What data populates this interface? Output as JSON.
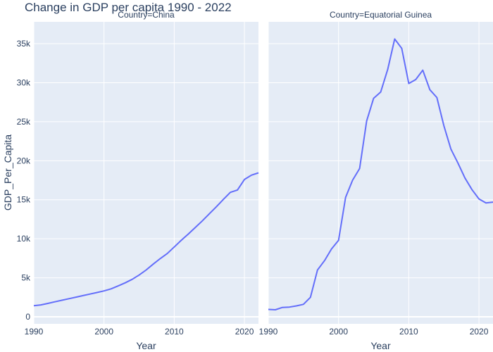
{
  "chart_data": {
    "type": "line",
    "title": "Change in GDP per capita 1990 - 2022",
    "ylabel": "GDP_Per_Capita",
    "xlabel": "Year",
    "ylim": [
      -900,
      37800
    ],
    "yticks": [
      0,
      5000,
      10000,
      15000,
      20000,
      25000,
      30000,
      35000
    ],
    "ytick_labels": [
      "0",
      "5k",
      "10k",
      "15k",
      "20k",
      "25k",
      "30k",
      "35k"
    ],
    "xticks": [
      1990,
      2000,
      2010,
      2020
    ],
    "xtick_labels": [
      "1990",
      "2000",
      "2010",
      "2020"
    ],
    "grid": true,
    "line_color": "#636efa",
    "panel_bg": "#e5ecf6",
    "panels": [
      {
        "facet_label": "Country=China",
        "xlim": [
          1990,
          2022
        ],
        "x": [
          1990,
          1991,
          1992,
          1993,
          1994,
          1995,
          1996,
          1997,
          1998,
          1999,
          2000,
          2001,
          2002,
          2003,
          2004,
          2005,
          2006,
          2007,
          2008,
          2009,
          2010,
          2011,
          2012,
          2013,
          2014,
          2015,
          2016,
          2017,
          2018,
          2019,
          2020,
          2021,
          2022
        ],
        "values": [
          1420,
          1530,
          1720,
          1920,
          2120,
          2320,
          2520,
          2720,
          2920,
          3110,
          3320,
          3580,
          3950,
          4350,
          4800,
          5350,
          6000,
          6750,
          7450,
          8100,
          8950,
          9800,
          10600,
          11450,
          12300,
          13200,
          14100,
          15050,
          15950,
          16250,
          17600,
          18150,
          18450
        ]
      },
      {
        "facet_label": "Country=Equatorial Guinea",
        "xlim": [
          1990,
          2022
        ],
        "x": [
          1990,
          1991,
          1992,
          1993,
          1994,
          1995,
          1996,
          1997,
          1998,
          1999,
          2000,
          2001,
          2002,
          2003,
          2004,
          2005,
          2006,
          2007,
          2008,
          2009,
          2010,
          2011,
          2012,
          2013,
          2014,
          2015,
          2016,
          2017,
          2018,
          2019,
          2020,
          2021,
          2022
        ],
        "values": [
          950,
          900,
          1200,
          1250,
          1400,
          1600,
          2500,
          6000,
          7200,
          8700,
          9800,
          15300,
          17500,
          19000,
          25100,
          28000,
          28800,
          31700,
          35600,
          34400,
          29900,
          30400,
          31600,
          29100,
          28100,
          24500,
          21500,
          19700,
          17800,
          16300,
          15100,
          14600,
          14700
        ]
      }
    ]
  }
}
